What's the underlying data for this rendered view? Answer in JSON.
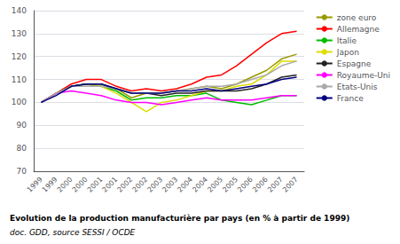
{
  "chart_data": {
    "type": "line",
    "title": "Evolution de la production manufacturière par pays (en % à partir de 1999)",
    "subtitle": "doc. GDD, source SESSI / OCDE",
    "categories": [
      "1999",
      "1999",
      "2000",
      "2000",
      "2001",
      "2001",
      "2002",
      "2002",
      "2003",
      "2003",
      "2004",
      "2004",
      "2005",
      "2005",
      "2006",
      "2006",
      "2007",
      "2007"
    ],
    "series": [
      {
        "name": "zone euro",
        "color": "#999900",
        "values": [
          100,
          104,
          107,
          108,
          107,
          106,
          102,
          104,
          104,
          105,
          106,
          107,
          106,
          108,
          111,
          114,
          119,
          121
        ]
      },
      {
        "name": "Allemagne",
        "color": "#ff0000",
        "values": [
          100,
          104,
          108,
          110,
          110,
          107,
          105,
          106,
          105,
          106,
          108,
          111,
          112,
          116,
          121,
          126,
          130,
          131
        ]
      },
      {
        "name": "Italie",
        "color": "#00bb00",
        "values": [
          100,
          104,
          107,
          108,
          107,
          105,
          101,
          102,
          102,
          103,
          103,
          104,
          101,
          100,
          99,
          101,
          103,
          103
        ]
      },
      {
        "name": "Japon",
        "color": "#dddd00",
        "values": [
          100,
          104,
          107,
          108,
          107,
          104,
          100,
          96,
          100,
          101,
          103,
          105,
          105,
          107,
          108,
          112,
          118,
          118
        ]
      },
      {
        "name": "Espagne",
        "color": "#222222",
        "values": [
          100,
          104,
          107,
          108,
          108,
          106,
          104,
          104,
          103,
          104,
          104,
          105,
          105,
          105,
          106,
          108,
          111,
          112
        ]
      },
      {
        "name": "Royaume-Uni",
        "color": "#ff00ff",
        "values": [
          100,
          104,
          105,
          104,
          103,
          101,
          100,
          100,
          99,
          100,
          101,
          102,
          101,
          101,
          101,
          102,
          103,
          103
        ]
      },
      {
        "name": "Etats-Unis",
        "color": "#aaaaaa",
        "values": [
          100,
          104,
          107,
          107,
          107,
          106,
          104,
          104,
          104,
          105,
          106,
          107,
          107,
          108,
          110,
          112,
          116,
          118
        ]
      },
      {
        "name": "France",
        "color": "#000080",
        "values": [
          100,
          103,
          107,
          108,
          108,
          106,
          104,
          104,
          104,
          105,
          105,
          106,
          105,
          106,
          107,
          108,
          110,
          111
        ]
      }
    ],
    "ylim": [
      70,
      140
    ],
    "yticks": [
      70,
      80,
      90,
      100,
      110,
      120,
      130,
      140
    ],
    "grid": true,
    "legend": "right"
  }
}
